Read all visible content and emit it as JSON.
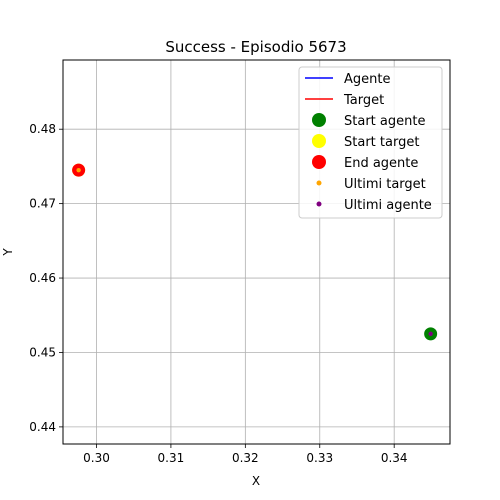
{
  "chart_data": {
    "type": "scatter",
    "title": "Success - Episodio 5673",
    "xlabel": "X",
    "ylabel": "Y",
    "xlim": [
      0.2955,
      0.3475
    ],
    "ylim": [
      0.4377,
      0.4893
    ],
    "grid": true,
    "legend_position": "top-right",
    "x_ticks": [
      0.3,
      0.31,
      0.32,
      0.33,
      0.34
    ],
    "y_ticks": [
      0.44,
      0.45,
      0.46,
      0.47,
      0.48
    ],
    "x_tick_labels": [
      "0.30",
      "0.31",
      "0.32",
      "0.33",
      "0.34"
    ],
    "y_tick_labels": [
      "0.44",
      "0.45",
      "0.46",
      "0.47",
      "0.48"
    ],
    "series": [
      {
        "name": "Agente",
        "kind": "line",
        "color": "#0000ff",
        "points": [
          [
            0.3449,
            0.4525
          ]
        ]
      },
      {
        "name": "Target",
        "kind": "line",
        "color": "#ff0000",
        "points": [
          [
            0.2976,
            0.4745
          ]
        ]
      },
      {
        "name": "Start agente",
        "kind": "marker",
        "size": "large",
        "color": "#008000",
        "points": [
          [
            0.3449,
            0.4525
          ]
        ]
      },
      {
        "name": "Start target",
        "kind": "marker",
        "size": "large",
        "color": "#ffff00",
        "points": [
          [
            0.2976,
            0.4745
          ]
        ]
      },
      {
        "name": "End agente",
        "kind": "marker",
        "size": "large",
        "color": "#ff0000",
        "points": [
          [
            0.2976,
            0.4745
          ]
        ]
      },
      {
        "name": "Ultimi target",
        "kind": "marker",
        "size": "small",
        "color": "#ffa500",
        "points": [
          [
            0.2976,
            0.4745
          ]
        ]
      },
      {
        "name": "Ultimi agente",
        "kind": "marker",
        "size": "small",
        "color": "#800080",
        "points": [
          [
            0.3449,
            0.4525
          ]
        ]
      }
    ]
  }
}
